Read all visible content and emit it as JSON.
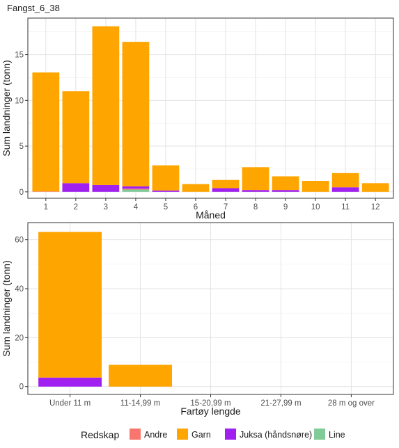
{
  "figure_title": "Fangst_6_38",
  "legend": {
    "title": "Redskap",
    "entries": [
      {
        "name": "Andre",
        "color": "#F8766D"
      },
      {
        "name": "Garn",
        "color": "#FFA500"
      },
      {
        "name": "Juksa (håndsnøre)",
        "color": "#A020F0"
      },
      {
        "name": "Line",
        "color": "#7FCC9A"
      }
    ]
  },
  "chart_data": [
    {
      "type": "bar",
      "stacked": true,
      "xlabel": "Måned",
      "ylabel": "Sum landninger (tonn)",
      "categories": [
        "1",
        "2",
        "3",
        "4",
        "5",
        "6",
        "7",
        "8",
        "9",
        "10",
        "11",
        "12"
      ],
      "ylim": [
        -0.7,
        19
      ],
      "yticks": [
        0,
        5,
        10,
        15
      ],
      "grid": true,
      "series": [
        {
          "name": "Line",
          "values": [
            0,
            0,
            0,
            0.25,
            0,
            0,
            0,
            0,
            0,
            0,
            0,
            0
          ]
        },
        {
          "name": "Andre",
          "values": [
            0.05,
            0,
            0,
            0.1,
            0,
            0,
            0,
            0,
            0,
            0,
            0,
            0
          ]
        },
        {
          "name": "Juksa (håndsnøre)",
          "values": [
            0,
            0.95,
            0.75,
            0.25,
            0.15,
            0,
            0.4,
            0.2,
            0.2,
            0,
            0.5,
            0
          ]
        },
        {
          "name": "Garn",
          "values": [
            13.0,
            10.05,
            17.35,
            15.8,
            2.75,
            0.85,
            0.9,
            2.5,
            1.5,
            1.2,
            1.55,
            0.95
          ]
        }
      ]
    },
    {
      "type": "bar",
      "stacked": true,
      "xlabel": "Fartøy lengde",
      "ylabel": "Sum landninger (tonn)",
      "categories": [
        "Under 11 m",
        "11-14,99 m",
        "15-20,99 m",
        "21-27,99 m",
        "28 m og over"
      ],
      "ylim": [
        -3.2,
        67
      ],
      "yticks": [
        0,
        20,
        40,
        60
      ],
      "grid": true,
      "series": [
        {
          "name": "Juksa (håndsnøre)",
          "values": [
            3.7,
            0,
            0,
            0,
            0
          ]
        },
        {
          "name": "Garn",
          "values": [
            59.5,
            8.9,
            0,
            0,
            0
          ]
        }
      ]
    }
  ]
}
